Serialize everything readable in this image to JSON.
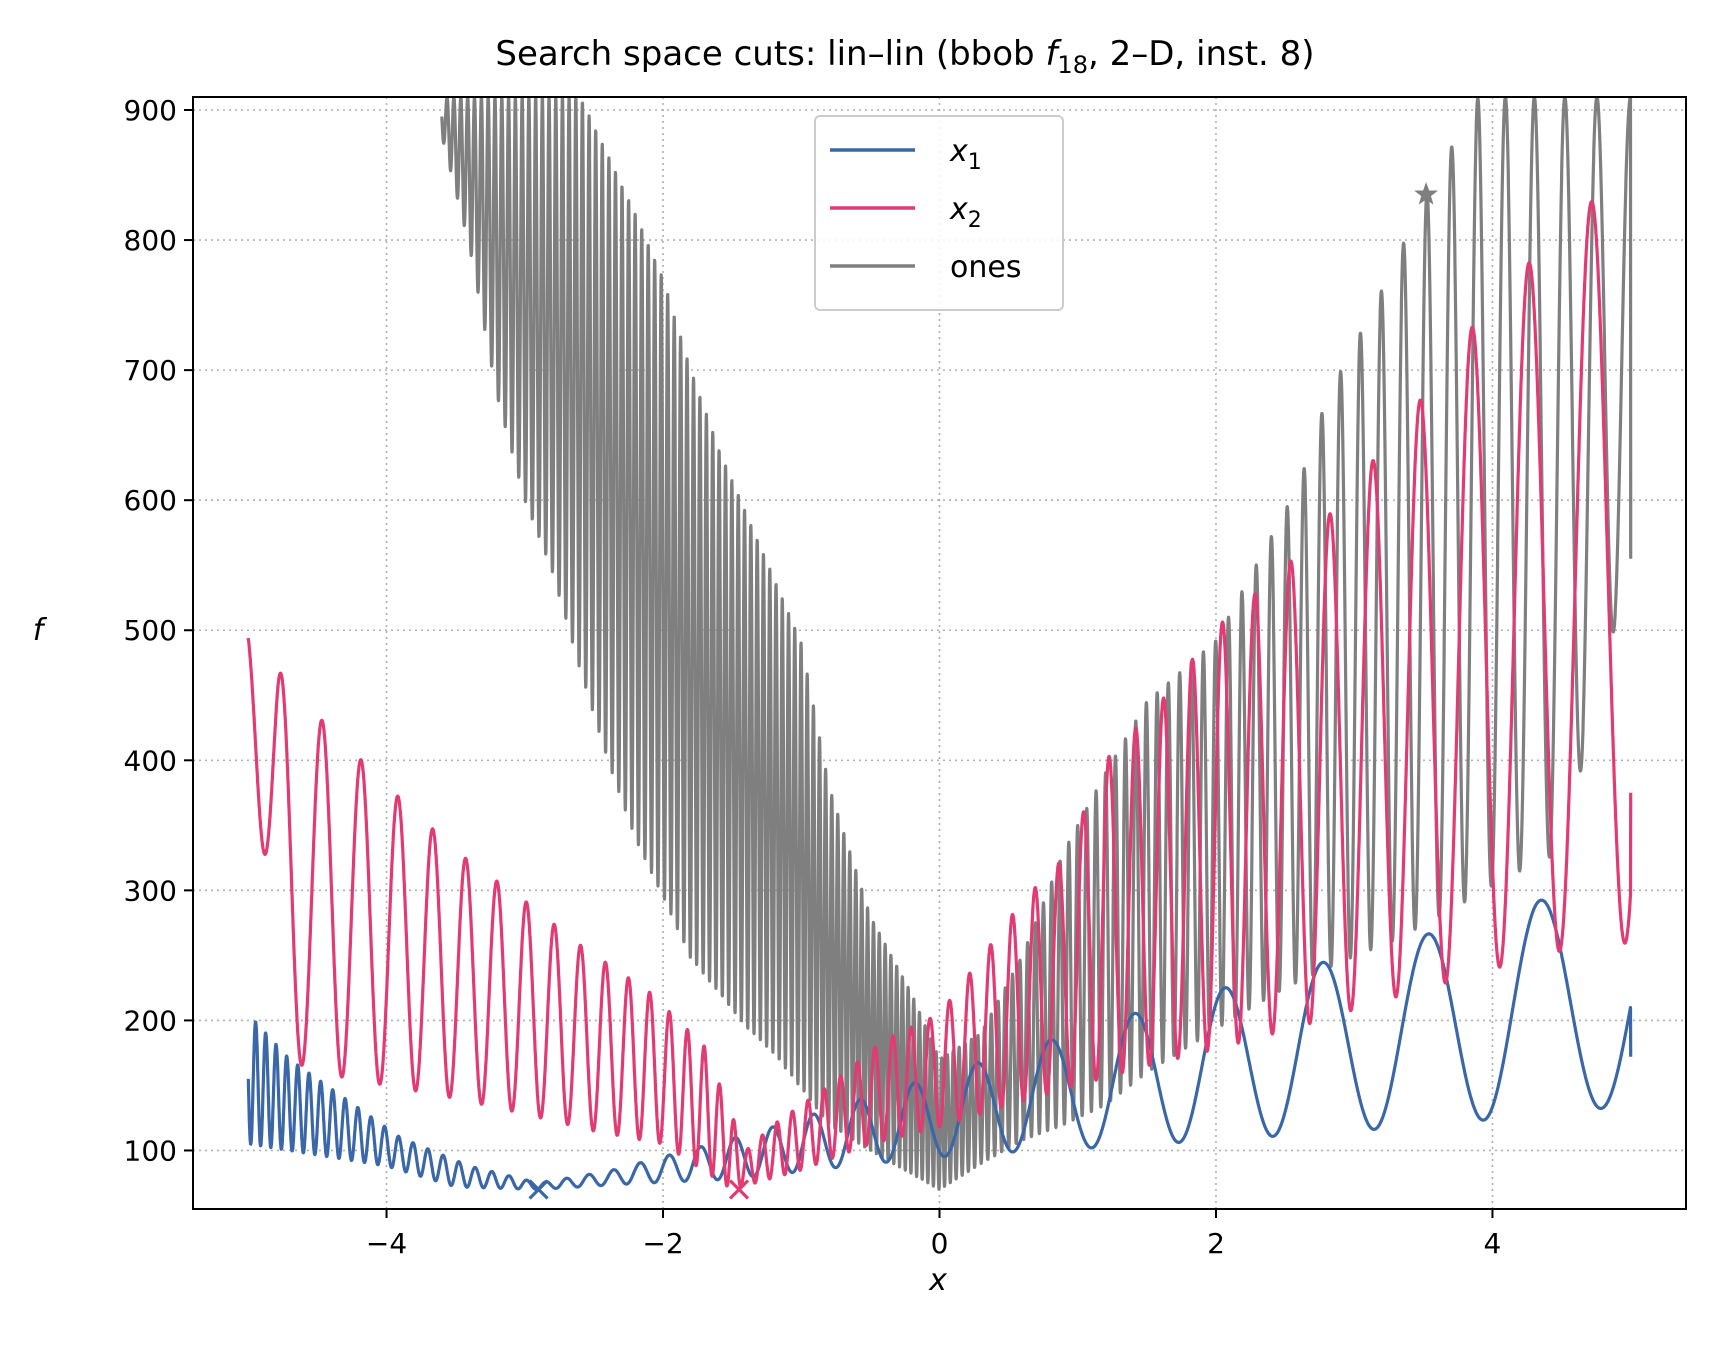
{
  "chart_data": {
    "type": "line",
    "title": "Search space cuts: lin–lin (bbob f18, 2–D, inst. 8)",
    "title_parts": {
      "prefix": "Search space cuts: lin–lin (bbob ",
      "f": "f",
      "sub": "18",
      "suffix": ", 2–D, inst. 8)"
    },
    "xlabel": "x",
    "ylabel": "f",
    "xlim": [
      -5.4,
      5.4
    ],
    "ylim": [
      55,
      910
    ],
    "x_ticks": [
      -4,
      -2,
      0,
      2,
      4
    ],
    "x_tick_labels": [
      "−4",
      "−2",
      "0",
      "2",
      "4"
    ],
    "y_ticks": [
      100,
      200,
      300,
      400,
      500,
      600,
      700,
      800,
      900
    ],
    "y_tick_labels": [
      "100",
      "200",
      "300",
      "400",
      "500",
      "600",
      "700",
      "800",
      "900"
    ],
    "grid": true,
    "legend_position": "top-center",
    "legend": [
      {
        "label": "x",
        "sub": "1",
        "color": "#3a67a8",
        "math": true
      },
      {
        "label": "x",
        "sub": "2",
        "color": "#e23b72",
        "math": true
      },
      {
        "label": "ones",
        "sub": "",
        "color": "#7f7f7f",
        "math": false
      }
    ],
    "series": [
      {
        "name": "x1",
        "color": "#3a67a8",
        "x_range": [
          -5,
          5
        ],
        "envelope_lower": [
          [
            -5,
            105
          ],
          [
            -4,
            88
          ],
          [
            -3.5,
            72
          ],
          [
            -2.9,
            70
          ],
          [
            -2.3,
            74
          ],
          [
            -1.5,
            78
          ],
          [
            -0.9,
            85
          ],
          [
            -0.3,
            92
          ],
          [
            0.3,
            98
          ],
          [
            0.8,
            100
          ],
          [
            2,
            108
          ],
          [
            3,
            115
          ],
          [
            3.8,
            122
          ],
          [
            4.6,
            130
          ],
          [
            5,
            135
          ]
        ],
        "envelope_upper": [
          [
            -5,
            205
          ],
          [
            -4.7,
            170
          ],
          [
            -4.3,
            140
          ],
          [
            -3.9,
            110
          ],
          [
            -3.4,
            88
          ],
          [
            -2.9,
            75
          ],
          [
            -2.4,
            84
          ],
          [
            -1.9,
            98
          ],
          [
            -1.3,
            115
          ],
          [
            -0.7,
            135
          ],
          [
            0,
            158
          ],
          [
            0.6,
            178
          ],
          [
            1.1,
            195
          ],
          [
            1.7,
            215
          ],
          [
            2.5,
            237
          ],
          [
            3.4,
            262
          ],
          [
            4.3,
            292
          ],
          [
            5,
            298
          ]
        ],
        "oscillation_period": [
          [
            -5,
            0.07
          ],
          [
            -3,
            0.13
          ],
          [
            -1,
            0.3
          ],
          [
            1,
            0.6
          ],
          [
            5,
            0.9
          ]
        ],
        "peaks": [
          {
            "x": 1.73,
            "y": 215
          },
          {
            "x": 2.5,
            "y": 237
          },
          {
            "x": 3.4,
            "y": 262
          },
          {
            "x": 4.3,
            "y": 292
          }
        ],
        "end_value": [
          5,
          172
        ],
        "minimum_marker": {
          "x": -2.9,
          "y": 70,
          "symbol": "x"
        }
      },
      {
        "name": "x2",
        "color": "#e23b72",
        "x_range": [
          -5,
          5
        ],
        "envelope_lower": [
          [
            -5,
            490
          ],
          [
            -4.8,
            172
          ],
          [
            -4.4,
            158
          ],
          [
            -4,
            150
          ],
          [
            -3.5,
            140
          ],
          [
            -3,
            128
          ],
          [
            -2.5,
            115
          ],
          [
            -2,
            105
          ],
          [
            -1.5,
            70
          ],
          [
            -1,
            85
          ],
          [
            -0.5,
            105
          ],
          [
            0,
            118
          ],
          [
            0.5,
            135
          ],
          [
            1,
            150
          ],
          [
            1.5,
            165
          ],
          [
            2,
            178
          ],
          [
            2.6,
            195
          ],
          [
            3.2,
            215
          ],
          [
            3.8,
            233
          ],
          [
            4.4,
            252
          ],
          [
            5,
            260
          ]
        ],
        "envelope_upper": [
          [
            -5,
            498
          ],
          [
            -4.6,
            445
          ],
          [
            -4.2,
            402
          ],
          [
            -3.8,
            360
          ],
          [
            -3.4,
            322
          ],
          [
            -3,
            292
          ],
          [
            -2.6,
            258
          ],
          [
            -2.1,
            222
          ],
          [
            -1.7,
            180
          ],
          [
            -1.4,
            100
          ],
          [
            -1.2,
            120
          ],
          [
            -0.8,
            150
          ],
          [
            -0.4,
            185
          ],
          [
            0,
            205
          ],
          [
            0.3,
            248
          ],
          [
            0.6,
            292
          ],
          [
            0.9,
            325
          ],
          [
            1.2,
            400
          ],
          [
            1.6,
            445
          ],
          [
            2,
            502
          ],
          [
            2.5,
            548
          ],
          [
            3.0,
            612
          ],
          [
            3.5,
            680
          ],
          [
            4.0,
            755
          ],
          [
            4.75,
            833
          ]
        ],
        "oscillation_period": [
          [
            -5,
            0.32
          ],
          [
            -2.5,
            0.18
          ],
          [
            -1.5,
            0.1
          ],
          [
            0,
            0.14
          ],
          [
            2,
            0.22
          ],
          [
            5,
            0.5
          ]
        ],
        "end_value": [
          5,
          375
        ],
        "minimum_marker": {
          "x": -1.45,
          "y": 70,
          "symbol": "x"
        }
      },
      {
        "name": "ones",
        "color": "#7f7f7f",
        "x_range": [
          -3.6,
          5
        ],
        "envelope_lower": [
          [
            -3.6,
            880
          ],
          [
            -3.4,
            795
          ],
          [
            -3.2,
            680
          ],
          [
            -3.0,
            600
          ],
          [
            -2.8,
            545
          ],
          [
            -2.6,
            470
          ],
          [
            -2.4,
            400
          ],
          [
            -2.2,
            340
          ],
          [
            -2.0,
            295
          ],
          [
            -1.8,
            248
          ],
          [
            -1.6,
            222
          ],
          [
            -1.4,
            195
          ],
          [
            -1.2,
            175
          ],
          [
            -1.0,
            148
          ],
          [
            -0.8,
            120
          ],
          [
            -0.5,
            100
          ],
          [
            -0.2,
            82
          ],
          [
            0,
            70
          ],
          [
            0.3,
            90
          ],
          [
            0.6,
            108
          ],
          [
            0.9,
            120
          ],
          [
            1.2,
            135
          ],
          [
            1.5,
            160
          ],
          [
            1.8,
            180
          ],
          [
            2.1,
            200
          ],
          [
            2.5,
            225
          ],
          [
            2.9,
            245
          ],
          [
            3.3,
            262
          ],
          [
            3.7,
            285
          ],
          [
            4.1,
            310
          ],
          [
            4.5,
            330
          ],
          [
            5,
            555
          ]
        ],
        "envelope_upper": [
          [
            -3.6,
            910
          ],
          [
            -3.0,
            910
          ],
          [
            -2.6,
            910
          ],
          [
            -2.2,
            820
          ],
          [
            -2.0,
            770
          ],
          [
            -1.8,
            700
          ],
          [
            -1.6,
            640
          ],
          [
            -1.4,
            590
          ],
          [
            -1.2,
            540
          ],
          [
            -1.0,
            490
          ],
          [
            -0.8,
            380
          ],
          [
            -0.5,
            280
          ],
          [
            -0.2,
            220
          ],
          [
            0,
            170
          ],
          [
            0.3,
            190
          ],
          [
            0.6,
            250
          ],
          [
            0.9,
            330
          ],
          [
            1.2,
            390
          ],
          [
            1.5,
            445
          ],
          [
            2,
            492
          ],
          [
            2.3,
            552
          ],
          [
            2.6,
            612
          ],
          [
            2.8,
            678
          ],
          [
            3.15,
            750
          ],
          [
            3.52,
            835
          ],
          [
            3.9,
            910
          ],
          [
            4.3,
            910
          ],
          [
            4.9,
            910
          ]
        ],
        "oscillation_period": [
          [
            -3.6,
            0.05
          ],
          [
            -1,
            0.045
          ],
          [
            0,
            0.04
          ],
          [
            2,
            0.09
          ],
          [
            4,
            0.2
          ],
          [
            5,
            0.25
          ]
        ],
        "end_value": [
          5,
          555
        ],
        "maximum_marker": {
          "x": 3.52,
          "y": 835,
          "symbol": "star"
        }
      }
    ]
  }
}
